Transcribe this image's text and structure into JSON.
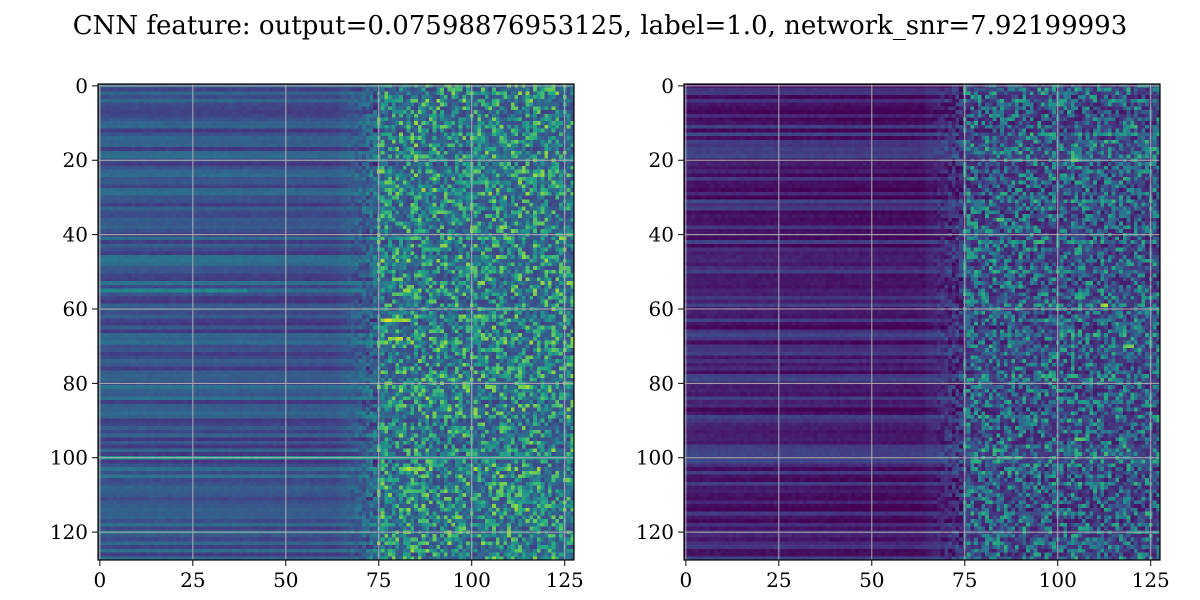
{
  "figure": {
    "title": "CNN feature: output=0.07598876953125, label=1.0, network_snr=7.92199993"
  },
  "chart_data": [
    {
      "type": "heatmap",
      "colormap": "viridis",
      "grid": true,
      "grid_color": "#b0b0b0",
      "xlim": [
        -0.5,
        127.5
      ],
      "ylim": [
        127.5,
        -0.5
      ],
      "xticks": [
        0,
        25,
        50,
        75,
        100,
        125
      ],
      "xtick_labels": [
        "0",
        "25",
        "50",
        "75",
        "100",
        "125"
      ],
      "yticks": [
        0,
        20,
        40,
        60,
        80,
        100,
        120
      ],
      "ytick_labels": [
        "0",
        "20",
        "40",
        "60",
        "80",
        "100",
        "120"
      ],
      "matrix_size": [
        128,
        128
      ],
      "column_profile": {
        "low_until": 65,
        "noisy_from": 75,
        "base_level": 0.28,
        "noise_level": 0.6
      },
      "highlights": [
        {
          "row": 63,
          "col_range": [
            76,
            84
          ],
          "level": 0.95
        },
        {
          "row": 68,
          "col_range": [
            78,
            82
          ],
          "level": 0.9
        },
        {
          "row": 103,
          "col_range": [
            82,
            88
          ],
          "level": 0.9
        },
        {
          "row": 52,
          "col_range": [
            79,
            82
          ],
          "level": 0.85
        },
        {
          "row": 109,
          "col_range": [
            82,
            86
          ],
          "level": 0.8
        },
        {
          "row": 100,
          "col_range": [
            0,
            128
          ],
          "level": 0.55
        },
        {
          "row": 55,
          "col_range": [
            0,
            40
          ],
          "level": 0.5
        }
      ]
    },
    {
      "type": "heatmap",
      "colormap": "viridis",
      "grid": true,
      "grid_color": "#b0b0b0",
      "xlim": [
        -0.5,
        127.5
      ],
      "ylim": [
        127.5,
        -0.5
      ],
      "xticks": [
        0,
        25,
        50,
        75,
        100,
        125
      ],
      "xtick_labels": [
        "0",
        "25",
        "50",
        "75",
        "100",
        "125"
      ],
      "yticks": [
        0,
        20,
        40,
        60,
        80,
        100,
        120
      ],
      "ytick_labels": [
        "0",
        "20",
        "40",
        "60",
        "80",
        "100",
        "120"
      ],
      "matrix_size": [
        128,
        128
      ],
      "column_profile": {
        "low_until": 65,
        "noisy_from": 75,
        "base_level": 0.12,
        "noise_level": 0.55
      },
      "highlights": [
        {
          "row": 59,
          "col_range": [
            112,
            114
          ],
          "level": 0.95
        },
        {
          "row": 20,
          "col_range": [
            104,
            106
          ],
          "level": 0.85
        },
        {
          "row": 36,
          "col_range": [
            84,
            86
          ],
          "level": 0.8
        },
        {
          "row": 95,
          "col_range": [
            105,
            108
          ],
          "level": 0.8
        },
        {
          "row": 70,
          "col_range": [
            118,
            121
          ],
          "level": 0.8
        }
      ]
    }
  ]
}
